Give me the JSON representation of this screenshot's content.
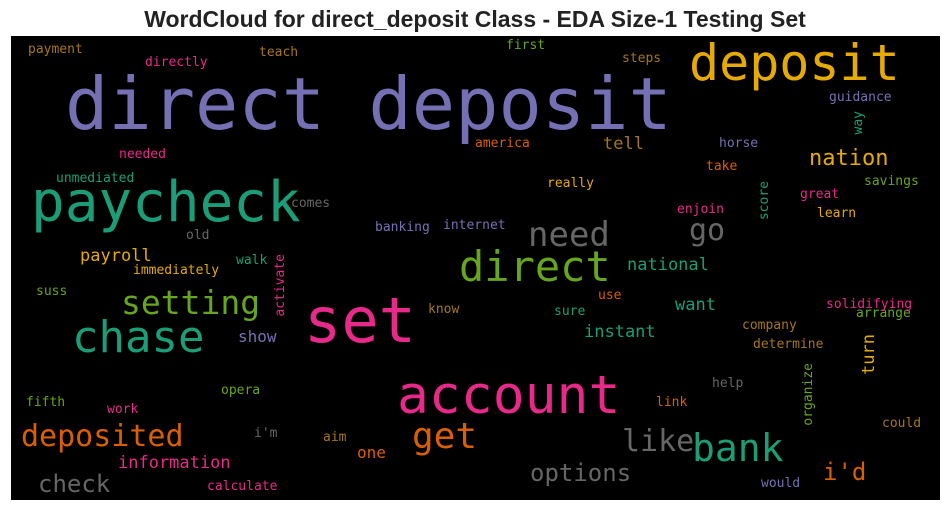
{
  "title": "WordCloud for direct_deposit Class - EDA Size-1 Testing Set",
  "palette": {
    "purple": "#7570b3",
    "green": "#1b9e77",
    "orange": "#d95f02",
    "pink": "#e7298a",
    "lime": "#66a61e",
    "gold": "#e6ab02",
    "brown": "#a6761d",
    "gray": "#666666",
    "background": "#000000"
  },
  "words": [
    {
      "text": "direct deposit",
      "color": "#7570b3"
    },
    {
      "text": "deposit",
      "color": "#e6ab02"
    },
    {
      "text": "paycheck",
      "color": "#1b9e77"
    },
    {
      "text": "set",
      "color": "#e7298a"
    },
    {
      "text": "account",
      "color": "#e7298a"
    },
    {
      "text": "direct",
      "color": "#66a61e"
    },
    {
      "text": "chase",
      "color": "#1b9e77"
    },
    {
      "text": "setting",
      "color": "#66a61e"
    },
    {
      "text": "need",
      "color": "#666666"
    },
    {
      "text": "bank",
      "color": "#1b9e77"
    },
    {
      "text": "get",
      "color": "#d95f02"
    },
    {
      "text": "deposited",
      "color": "#d95f02"
    },
    {
      "text": "like",
      "color": "#666666"
    },
    {
      "text": "go",
      "color": "#666666"
    },
    {
      "text": "nation",
      "color": "#e6ab02"
    },
    {
      "text": "options",
      "color": "#666666"
    },
    {
      "text": "check",
      "color": "#666666"
    },
    {
      "text": "i'd",
      "color": "#d95f02"
    },
    {
      "text": "information",
      "color": "#e7298a"
    },
    {
      "text": "payroll",
      "color": "#e6ab02"
    },
    {
      "text": "national",
      "color": "#1b9e77"
    },
    {
      "text": "instant",
      "color": "#1b9e77"
    },
    {
      "text": "want",
      "color": "#1b9e77"
    },
    {
      "text": "turn",
      "color": "#e6ab02"
    },
    {
      "text": "tell",
      "color": "#a6761d"
    },
    {
      "text": "show",
      "color": "#7570b3"
    },
    {
      "text": "one",
      "color": "#d95f02"
    },
    {
      "text": "immediately",
      "color": "#e6ab02"
    },
    {
      "text": "payment",
      "color": "#a6761d"
    },
    {
      "text": "directly",
      "color": "#e7298a"
    },
    {
      "text": "teach",
      "color": "#a6761d"
    },
    {
      "text": "first",
      "color": "#66a61e"
    },
    {
      "text": "steps",
      "color": "#a6761d"
    },
    {
      "text": "guidance",
      "color": "#7570b3"
    },
    {
      "text": "way",
      "color": "#1b9e77"
    },
    {
      "text": "horse",
      "color": "#7570b3"
    },
    {
      "text": "america",
      "color": "#d95f02"
    },
    {
      "text": "needed",
      "color": "#e7298a"
    },
    {
      "text": "take",
      "color": "#d95f02"
    },
    {
      "text": "unmediated",
      "color": "#1b9e77"
    },
    {
      "text": "really",
      "color": "#e6ab02"
    },
    {
      "text": "savings",
      "color": "#66a61e"
    },
    {
      "text": "great",
      "color": "#e7298a"
    },
    {
      "text": "score",
      "color": "#1b9e77"
    },
    {
      "text": "comes",
      "color": "#666666"
    },
    {
      "text": "enjoin",
      "color": "#e7298a"
    },
    {
      "text": "learn",
      "color": "#e6ab02"
    },
    {
      "text": "banking",
      "color": "#7570b3"
    },
    {
      "text": "internet",
      "color": "#7570b3"
    },
    {
      "text": "old",
      "color": "#666666"
    },
    {
      "text": "walk",
      "color": "#1b9e77"
    },
    {
      "text": "activate",
      "color": "#e7298a"
    },
    {
      "text": "suss",
      "color": "#66a61e"
    },
    {
      "text": "use",
      "color": "#d95f02"
    },
    {
      "text": "arrange",
      "color": "#66a61e"
    },
    {
      "text": "solidifying",
      "color": "#e7298a"
    },
    {
      "text": "know",
      "color": "#a6761d"
    },
    {
      "text": "sure",
      "color": "#1b9e77"
    },
    {
      "text": "company",
      "color": "#a6761d"
    },
    {
      "text": "determine",
      "color": "#a6761d"
    },
    {
      "text": "opera",
      "color": "#66a61e"
    },
    {
      "text": "help",
      "color": "#666666"
    },
    {
      "text": "organize",
      "color": "#66a61e"
    },
    {
      "text": "fifth",
      "color": "#66a61e"
    },
    {
      "text": "work",
      "color": "#e7298a"
    },
    {
      "text": "link",
      "color": "#d95f02"
    },
    {
      "text": "i'm",
      "color": "#666666"
    },
    {
      "text": "could",
      "color": "#a6761d"
    },
    {
      "text": "aim",
      "color": "#a6761d"
    },
    {
      "text": "calculate",
      "color": "#e7298a"
    },
    {
      "text": "would",
      "color": "#7570b3"
    }
  ]
}
